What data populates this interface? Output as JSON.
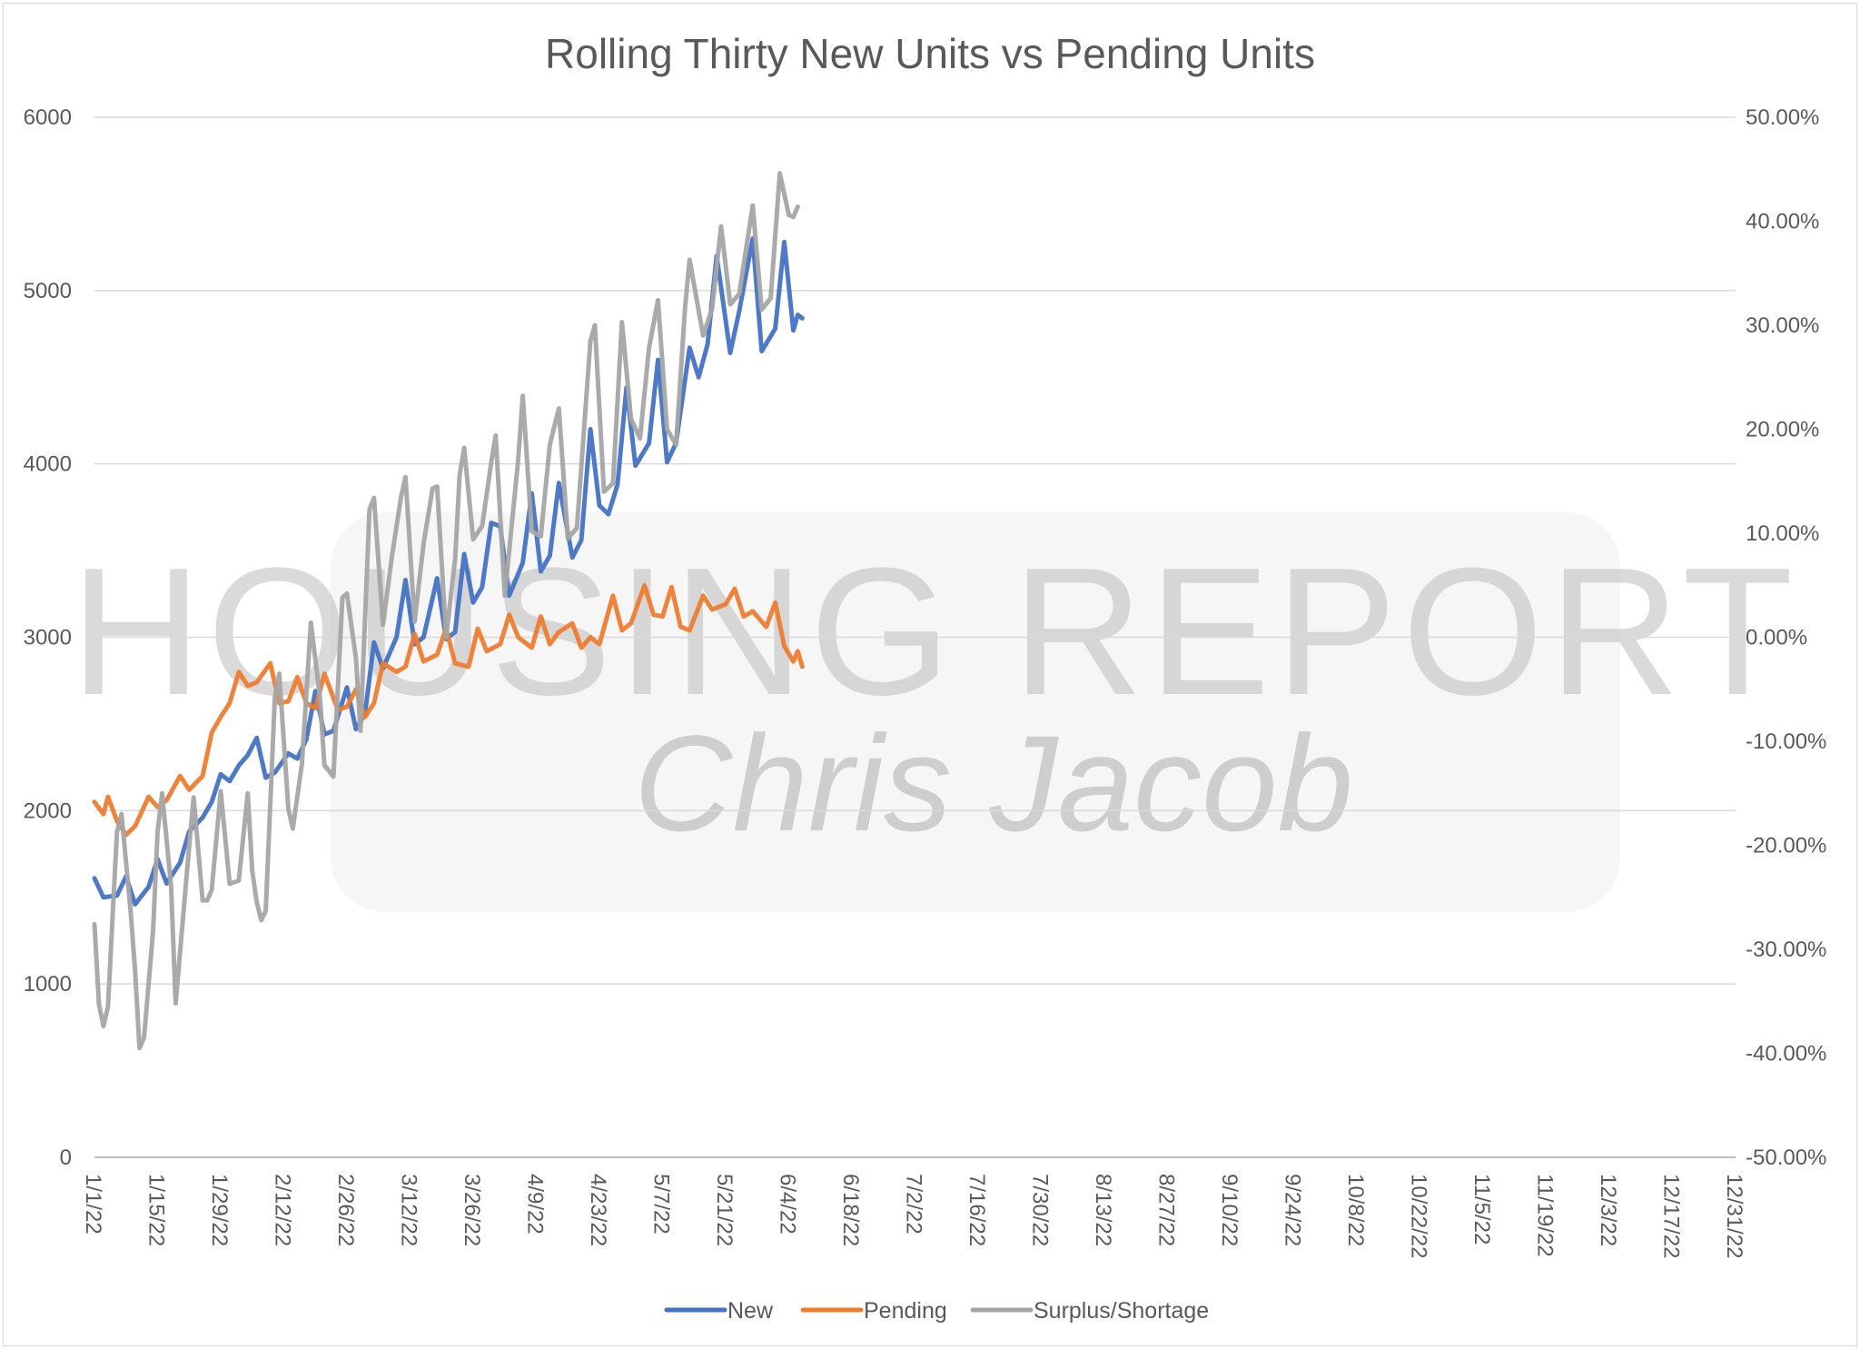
{
  "chart_data": {
    "type": "line",
    "title": "Rolling Thirty New Units vs Pending Units",
    "x_ticks": [
      "1/1/22",
      "1/15/22",
      "1/29/22",
      "2/12/22",
      "2/26/22",
      "3/12/22",
      "3/26/22",
      "4/9/22",
      "4/23/22",
      "5/7/22",
      "5/21/22",
      "6/4/22",
      "6/18/22",
      "7/2/22",
      "7/16/22",
      "7/30/22",
      "8/13/22",
      "8/27/22",
      "9/10/22",
      "9/24/22",
      "10/8/22",
      "10/22/22",
      "11/5/22",
      "11/19/22",
      "12/3/22",
      "12/17/22",
      "12/31/22"
    ],
    "x_range": [
      "1/1/22",
      "12/31/22"
    ],
    "y_left": {
      "min": 0,
      "max": 6000,
      "ticks": [
        "0",
        "1000",
        "2000",
        "3000",
        "4000",
        "5000",
        "6000"
      ]
    },
    "y_right": {
      "min": -0.5,
      "max": 0.5,
      "ticks": [
        "-50.00%",
        "-40.00%",
        "-30.00%",
        "-20.00%",
        "-10.00%",
        "0.00%",
        "10.00%",
        "20.00%",
        "30.00%",
        "40.00%",
        "50.00%"
      ]
    },
    "grid": true,
    "legend_position": "bottom",
    "series": [
      {
        "name": "New",
        "axis": "left",
        "color": "#4472c4",
        "points": [
          [
            "1/1/22",
            1610
          ],
          [
            "1/3/22",
            1500
          ],
          [
            "1/6/22",
            1510
          ],
          [
            "1/8/22",
            1620
          ],
          [
            "1/10/22",
            1460
          ],
          [
            "1/13/22",
            1560
          ],
          [
            "1/15/22",
            1720
          ],
          [
            "1/17/22",
            1580
          ],
          [
            "1/20/22",
            1700
          ],
          [
            "1/22/22",
            1880
          ],
          [
            "1/25/22",
            1960
          ],
          [
            "1/27/22",
            2050
          ],
          [
            "1/29/22",
            2210
          ],
          [
            "1/31/22",
            2170
          ],
          [
            "2/2/22",
            2260
          ],
          [
            "2/4/22",
            2320
          ],
          [
            "2/6/22",
            2420
          ],
          [
            "2/8/22",
            2190
          ],
          [
            "2/10/22",
            2220
          ],
          [
            "2/13/22",
            2330
          ],
          [
            "2/15/22",
            2300
          ],
          [
            "2/17/22",
            2410
          ],
          [
            "2/19/22",
            2690
          ],
          [
            "2/21/22",
            2440
          ],
          [
            "2/23/22",
            2460
          ],
          [
            "2/26/22",
            2710
          ],
          [
            "2/28/22",
            2470
          ],
          [
            "3/2/22",
            2560
          ],
          [
            "3/4/22",
            2970
          ],
          [
            "3/6/22",
            2820
          ],
          [
            "3/9/22",
            3000
          ],
          [
            "3/11/22",
            3330
          ],
          [
            "3/13/22",
            2960
          ],
          [
            "3/15/22",
            3000
          ],
          [
            "3/18/22",
            3340
          ],
          [
            "3/20/22",
            2990
          ],
          [
            "3/22/22",
            3030
          ],
          [
            "3/24/22",
            3480
          ],
          [
            "3/26/22",
            3200
          ],
          [
            "3/28/22",
            3290
          ],
          [
            "3/30/22",
            3660
          ],
          [
            "4/1/22",
            3640
          ],
          [
            "4/3/22",
            3240
          ],
          [
            "4/6/22",
            3430
          ],
          [
            "4/8/22",
            3830
          ],
          [
            "4/10/22",
            3380
          ],
          [
            "4/12/22",
            3470
          ],
          [
            "4/14/22",
            3890
          ],
          [
            "4/17/22",
            3460
          ],
          [
            "4/19/22",
            3560
          ],
          [
            "4/21/22",
            4200
          ],
          [
            "4/23/22",
            3760
          ],
          [
            "4/25/22",
            3710
          ],
          [
            "4/27/22",
            3880
          ],
          [
            "4/29/22",
            4440
          ],
          [
            "5/1/22",
            3990
          ],
          [
            "5/4/22",
            4120
          ],
          [
            "5/6/22",
            4600
          ],
          [
            "5/8/22",
            4010
          ],
          [
            "5/10/22",
            4120
          ],
          [
            "5/13/22",
            4670
          ],
          [
            "5/15/22",
            4500
          ],
          [
            "5/17/22",
            4690
          ],
          [
            "5/19/22",
            5200
          ],
          [
            "5/22/22",
            4640
          ],
          [
            "5/24/22",
            4880
          ],
          [
            "5/27/22",
            5300
          ],
          [
            "5/29/22",
            4650
          ],
          [
            "6/1/22",
            4780
          ],
          [
            "6/3/22",
            5280
          ],
          [
            "6/5/22",
            4770
          ],
          [
            "6/6/22",
            4860
          ],
          [
            "6/7/22",
            4840
          ]
        ]
      },
      {
        "name": "Pending",
        "axis": "left",
        "color": "#ed7d31",
        "points": [
          [
            "1/1/22",
            2050
          ],
          [
            "1/3/22",
            1980
          ],
          [
            "1/4/22",
            2080
          ],
          [
            "1/6/22",
            1940
          ],
          [
            "1/8/22",
            1860
          ],
          [
            "1/10/22",
            1910
          ],
          [
            "1/13/22",
            2080
          ],
          [
            "1/15/22",
            2020
          ],
          [
            "1/17/22",
            2060
          ],
          [
            "1/20/22",
            2200
          ],
          [
            "1/22/22",
            2120
          ],
          [
            "1/25/22",
            2200
          ],
          [
            "1/27/22",
            2450
          ],
          [
            "1/29/22",
            2540
          ],
          [
            "1/31/22",
            2620
          ],
          [
            "2/2/22",
            2800
          ],
          [
            "2/4/22",
            2720
          ],
          [
            "2/6/22",
            2740
          ],
          [
            "2/9/22",
            2850
          ],
          [
            "2/11/22",
            2620
          ],
          [
            "2/13/22",
            2630
          ],
          [
            "2/15/22",
            2770
          ],
          [
            "2/17/22",
            2620
          ],
          [
            "2/19/22",
            2590
          ],
          [
            "2/21/22",
            2790
          ],
          [
            "2/24/22",
            2580
          ],
          [
            "2/26/22",
            2600
          ],
          [
            "2/28/22",
            2700
          ],
          [
            "3/2/22",
            2540
          ],
          [
            "3/4/22",
            2620
          ],
          [
            "3/6/22",
            2850
          ],
          [
            "3/9/22",
            2800
          ],
          [
            "3/11/22",
            2830
          ],
          [
            "3/13/22",
            3020
          ],
          [
            "3/15/22",
            2860
          ],
          [
            "3/18/22",
            2900
          ],
          [
            "3/20/22",
            3050
          ],
          [
            "3/22/22",
            2850
          ],
          [
            "3/25/22",
            2830
          ],
          [
            "3/27/22",
            3050
          ],
          [
            "3/29/22",
            2920
          ],
          [
            "4/1/22",
            2960
          ],
          [
            "4/3/22",
            3130
          ],
          [
            "4/5/22",
            3000
          ],
          [
            "4/8/22",
            2940
          ],
          [
            "4/10/22",
            3120
          ],
          [
            "4/12/22",
            2960
          ],
          [
            "4/14/22",
            3030
          ],
          [
            "4/17/22",
            3080
          ],
          [
            "4/19/22",
            2940
          ],
          [
            "4/21/22",
            3000
          ],
          [
            "4/23/22",
            2960
          ],
          [
            "4/26/22",
            3240
          ],
          [
            "4/28/22",
            3040
          ],
          [
            "4/30/22",
            3080
          ],
          [
            "5/3/22",
            3300
          ],
          [
            "5/5/22",
            3130
          ],
          [
            "5/7/22",
            3120
          ],
          [
            "5/9/22",
            3290
          ],
          [
            "5/11/22",
            3060
          ],
          [
            "5/13/22",
            3040
          ],
          [
            "5/16/22",
            3240
          ],
          [
            "5/18/22",
            3160
          ],
          [
            "5/21/22",
            3190
          ],
          [
            "5/23/22",
            3280
          ],
          [
            "5/25/22",
            3120
          ],
          [
            "5/27/22",
            3150
          ],
          [
            "5/30/22",
            3060
          ],
          [
            "6/1/22",
            3200
          ],
          [
            "6/3/22",
            2950
          ],
          [
            "6/5/22",
            2860
          ],
          [
            "6/6/22",
            2920
          ],
          [
            "6/7/22",
            2830
          ]
        ]
      },
      {
        "name": "Surplus/Shortage",
        "axis": "right",
        "color": "#a5a5a5",
        "points": [
          [
            "1/1/22",
            -0.276
          ],
          [
            "1/2/22",
            -0.353
          ],
          [
            "1/3/22",
            -0.374
          ],
          [
            "1/4/22",
            -0.355
          ],
          [
            "1/6/22",
            -0.187
          ],
          [
            "1/7/22",
            -0.17
          ],
          [
            "1/9/22",
            -0.262
          ],
          [
            "1/10/22",
            -0.32
          ],
          [
            "1/11/22",
            -0.395
          ],
          [
            "1/12/22",
            -0.385
          ],
          [
            "1/14/22",
            -0.283
          ],
          [
            "1/15/22",
            -0.187
          ],
          [
            "1/16/22",
            -0.15
          ],
          [
            "1/18/22",
            -0.24
          ],
          [
            "1/19/22",
            -0.352
          ],
          [
            "1/22/22",
            -0.201
          ],
          [
            "1/23/22",
            -0.154
          ],
          [
            "1/25/22",
            -0.253
          ],
          [
            "1/26/22",
            -0.253
          ],
          [
            "1/27/22",
            -0.243
          ],
          [
            "1/29/22",
            -0.148
          ],
          [
            "1/31/22",
            -0.237
          ],
          [
            "2/2/22",
            -0.234
          ],
          [
            "2/4/22",
            -0.15
          ],
          [
            "2/5/22",
            -0.225
          ],
          [
            "2/6/22",
            -0.255
          ],
          [
            "2/7/22",
            -0.272
          ],
          [
            "2/8/22",
            -0.263
          ],
          [
            "2/10/22",
            -0.058
          ],
          [
            "2/11/22",
            -0.035
          ],
          [
            "2/13/22",
            -0.165
          ],
          [
            "2/14/22",
            -0.184
          ],
          [
            "2/16/22",
            -0.122
          ],
          [
            "2/18/22",
            0.014
          ],
          [
            "2/20/22",
            -0.057
          ],
          [
            "2/21/22",
            -0.123
          ],
          [
            "2/23/22",
            -0.134
          ],
          [
            "2/25/22",
            0.038
          ],
          [
            "2/26/22",
            0.042
          ],
          [
            "2/28/22",
            -0.02
          ],
          [
            "3/1/22",
            -0.09
          ],
          [
            "3/3/22",
            0.123
          ],
          [
            "3/4/22",
            0.134
          ],
          [
            "3/6/22",
            0.012
          ],
          [
            "3/8/22",
            0.078
          ],
          [
            "3/10/22",
            0.135
          ],
          [
            "3/11/22",
            0.154
          ],
          [
            "3/13/22",
            0.015
          ],
          [
            "3/15/22",
            0.09
          ],
          [
            "3/17/22",
            0.143
          ],
          [
            "3/18/22",
            0.145
          ],
          [
            "3/20/22",
            0.0
          ],
          [
            "3/22/22",
            0.075
          ],
          [
            "3/23/22",
            0.156
          ],
          [
            "3/24/22",
            0.182
          ],
          [
            "3/26/22",
            0.094
          ],
          [
            "3/28/22",
            0.107
          ],
          [
            "3/30/22",
            0.168
          ],
          [
            "3/31/22",
            0.194
          ],
          [
            "4/2/22",
            0.04
          ],
          [
            "4/5/22",
            0.171
          ],
          [
            "4/6/22",
            0.232
          ],
          [
            "4/8/22",
            0.102
          ],
          [
            "4/10/22",
            0.097
          ],
          [
            "4/12/22",
            0.185
          ],
          [
            "4/14/22",
            0.22
          ],
          [
            "4/16/22",
            0.095
          ],
          [
            "4/18/22",
            0.105
          ],
          [
            "4/21/22",
            0.285
          ],
          [
            "4/22/22",
            0.3
          ],
          [
            "4/24/22",
            0.14
          ],
          [
            "4/26/22",
            0.148
          ],
          [
            "4/28/22",
            0.303
          ],
          [
            "4/30/22",
            0.21
          ],
          [
            "5/2/22",
            0.191
          ],
          [
            "5/4/22",
            0.278
          ],
          [
            "5/6/22",
            0.324
          ],
          [
            "5/8/22",
            0.2
          ],
          [
            "5/10/22",
            0.185
          ],
          [
            "5/12/22",
            0.317
          ],
          [
            "5/13/22",
            0.363
          ],
          [
            "5/16/22",
            0.29
          ],
          [
            "5/18/22",
            0.316
          ],
          [
            "5/20/22",
            0.395
          ],
          [
            "5/22/22",
            0.32
          ],
          [
            "5/24/22",
            0.33
          ],
          [
            "5/27/22",
            0.415
          ],
          [
            "5/29/22",
            0.315
          ],
          [
            "5/31/22",
            0.326
          ],
          [
            "6/2/22",
            0.446
          ],
          [
            "6/4/22",
            0.406
          ],
          [
            "6/5/22",
            0.404
          ],
          [
            "6/6/22",
            0.414
          ]
        ]
      }
    ],
    "watermark": [
      "HOUSING REPORT",
      "Chris Jacob"
    ]
  }
}
